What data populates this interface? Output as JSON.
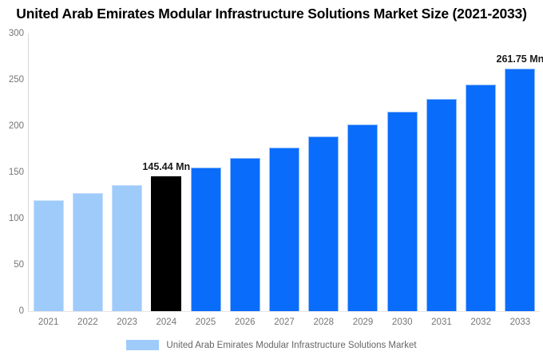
{
  "title": "United Arab Emirates Modular Infrastructure Solutions Market Size (2021-2033)",
  "chart_data": {
    "type": "bar",
    "title": "United Arab Emirates Modular Infrastructure Solutions Market Size (2021-2033)",
    "categories": [
      "2021",
      "2022",
      "2023",
      "2024",
      "2025",
      "2026",
      "2027",
      "2028",
      "2029",
      "2030",
      "2031",
      "2032",
      "2033"
    ],
    "values": [
      119.58,
      127.64,
      136.25,
      145.44,
      155.26,
      165.73,
      176.92,
      188.86,
      201.6,
      215.21,
      229.74,
      245.24,
      261.75
    ],
    "unit": "Mn",
    "xlabel": "",
    "ylabel": "",
    "ylim": [
      0,
      300
    ],
    "yticks": [
      0,
      50,
      100,
      150,
      200,
      250,
      300
    ],
    "grid": false,
    "legend_position": "bottom",
    "bar_color_keys": [
      "historical",
      "historical",
      "historical",
      "highlight",
      "forecast",
      "forecast",
      "forecast",
      "forecast",
      "forecast",
      "forecast",
      "forecast",
      "forecast",
      "forecast"
    ],
    "annotations": [
      {
        "category": "2024",
        "text": "145.44 Mn"
      },
      {
        "category": "2033",
        "text": "261.75 Mn"
      }
    ],
    "legend": {
      "label": "United Arab Emirates Modular Infrastructure Solutions Market",
      "swatch_color": "#9FCBFA"
    }
  },
  "colors": {
    "historical": "#9FCBFA",
    "historical_border": "#c4e0fc",
    "highlight": "#000000",
    "highlight_border": "#000000",
    "forecast": "#0A6CFB",
    "forecast_border": "#8fbcf9",
    "axis_line": "#d9d9d9",
    "tick_label": "#757575",
    "annotation_text": "#1a1a1a",
    "legend_text": "#666666",
    "title_text": "#000000"
  }
}
